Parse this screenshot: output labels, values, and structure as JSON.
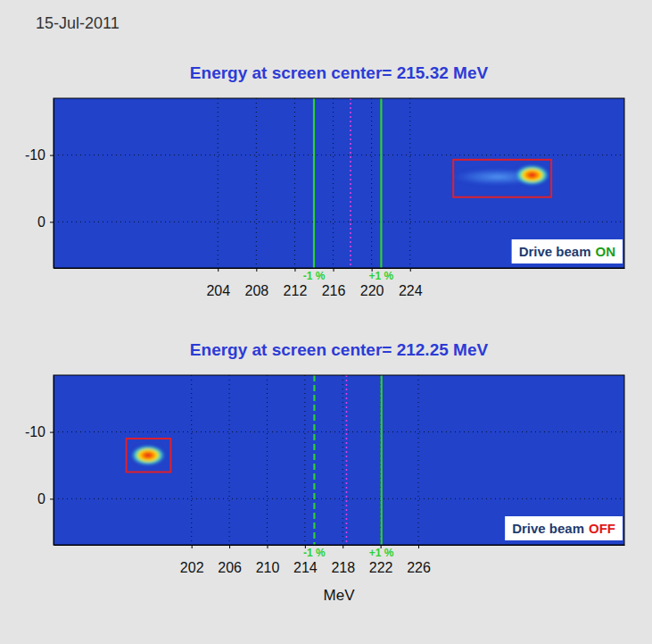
{
  "date": "15-Jul-2011",
  "chart_data": [
    {
      "type": "image",
      "title": "Energy at screen center= 215.32 MeV",
      "xlim": [
        186.9,
        246.3
      ],
      "xticks": [
        204,
        208,
        212,
        216,
        220,
        224
      ],
      "ylim": [
        -18.5,
        6.9
      ],
      "yticks": [
        -10,
        0
      ],
      "grid": true,
      "markers": [
        {
          "value": 214.0,
          "label": "-1 %",
          "color": "#2ed12e",
          "line_style": "solid"
        },
        {
          "value": 217.8,
          "color": "#e040e0",
          "line_style": "dotted"
        },
        {
          "value": 221.0,
          "label": "+1 %",
          "color": "#2ed12e",
          "line_style": "solid"
        }
      ],
      "beam": {
        "x": 236.7,
        "y": -7.0,
        "tail_x": 229.5
      },
      "box": {
        "x": [
          228.5,
          238.7
        ],
        "y": [
          -9.3,
          -3.7
        ],
        "color": "#e0202a"
      },
      "annotation": {
        "text": "Drive beam",
        "state": "ON",
        "color": "#1a9e1a"
      }
    },
    {
      "type": "image",
      "title": "Energy at screen center= 212.25 MeV",
      "xlim": [
        187.4,
        247.8
      ],
      "xticks": [
        202,
        206,
        210,
        214,
        218,
        222,
        226
      ],
      "ylim": [
        -18.5,
        6.9
      ],
      "yticks": [
        -10,
        0
      ],
      "grid": true,
      "x_label": "MeV",
      "markers": [
        {
          "value": 215.0,
          "label": "-1 %",
          "color": "#2ed12e",
          "line_style": "dashed"
        },
        {
          "value": 218.4,
          "color": "#e040e0",
          "line_style": "dotted"
        },
        {
          "value": 222.1,
          "label": "+1 %",
          "color": "#2ed12e",
          "line_style": "solid"
        }
      ],
      "beam": {
        "x": 197.4,
        "y": -6.5
      },
      "box": {
        "x": [
          195.1,
          199.8
        ],
        "y": [
          -9.0,
          -4.0
        ],
        "color": "#e0202a"
      },
      "annotation": {
        "text": "Drive beam",
        "state": "OFF",
        "color": "#e01818"
      }
    }
  ]
}
